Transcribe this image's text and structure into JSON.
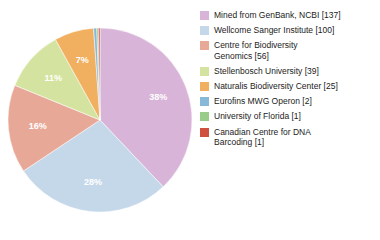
{
  "chart_data": {
    "type": "pie",
    "categories": [
      "Mined from GenBank, NCBI [137]",
      "Wellcome Sanger Institute [100]",
      "Centre for Biodiversity\nGenomics [56]",
      "Stellenbosch University [39]",
      "Naturalis Biodiversity Center [25]",
      "Eurofins MWG Operon [2]",
      "University of Florida [1]",
      "Canadian Centre for DNA\nBarcoding [1]"
    ],
    "values": [
      37.95,
      27.7,
      15.51,
      10.8,
      6.93,
      0.55,
      0.28,
      0.28
    ],
    "value_labels": [
      "38%",
      "28%",
      "16%",
      "11%",
      "7%",
      null,
      null,
      null
    ],
    "data_labels": true,
    "colors": [
      "#d8b4d8",
      "#c5d8ea",
      "#e8a898",
      "#d4e4a0",
      "#f0b060",
      "#88b8d8",
      "#98cc88",
      "#d05040"
    ],
    "legend": "right"
  }
}
